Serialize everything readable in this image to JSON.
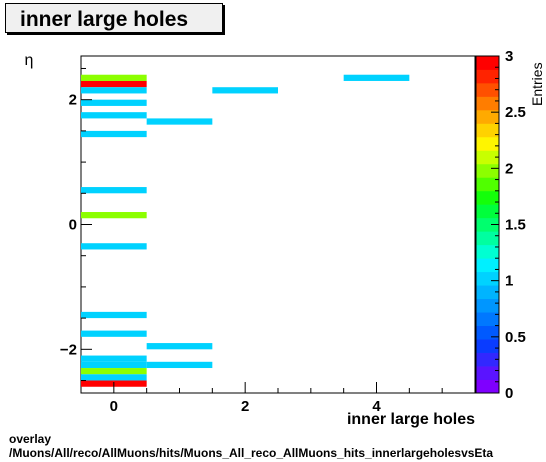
{
  "title": "inner large holes",
  "footer": {
    "line1": "overlay",
    "line2": "/Muons/All/reco/AllMuons/hits/Muons_All_reco_AllMuons_hits_innerlargeholesvsEta"
  },
  "chart_data": {
    "type": "heatmap",
    "title": "inner large holes",
    "xlabel": "inner large holes",
    "ylabel": "η",
    "zlabel": "Entries",
    "xlim": [
      -0.5,
      5.5
    ],
    "ylim": [
      -2.7,
      2.7
    ],
    "zlim": [
      0,
      3
    ],
    "x_ticks": [
      0,
      2,
      4
    ],
    "y_ticks": [
      -2,
      0,
      2
    ],
    "z_ticks": [
      "0",
      "0.5",
      "1",
      "1.5",
      "2",
      "2.5",
      "3"
    ],
    "bin_height": 0.1,
    "bins": [
      {
        "x": 0,
        "y": 2.35,
        "z": 2
      },
      {
        "x": 0,
        "y": 2.25,
        "z": 3
      },
      {
        "x": 0,
        "y": 2.15,
        "z": 1
      },
      {
        "x": 0,
        "y": 1.95,
        "z": 1
      },
      {
        "x": 0,
        "y": 1.75,
        "z": 1
      },
      {
        "x": 0,
        "y": 1.45,
        "z": 1
      },
      {
        "x": 0,
        "y": 0.55,
        "z": 1
      },
      {
        "x": 0,
        "y": 0.15,
        "z": 2
      },
      {
        "x": 0,
        "y": -0.35,
        "z": 1
      },
      {
        "x": 0,
        "y": -1.45,
        "z": 1
      },
      {
        "x": 0,
        "y": -1.75,
        "z": 1
      },
      {
        "x": 0,
        "y": -2.15,
        "z": 1
      },
      {
        "x": 0,
        "y": -2.25,
        "z": 1
      },
      {
        "x": 0,
        "y": -2.35,
        "z": 2
      },
      {
        "x": 0,
        "y": -2.45,
        "z": 1
      },
      {
        "x": 0,
        "y": -2.55,
        "z": 3
      },
      {
        "x": 1,
        "y": 1.65,
        "z": 1
      },
      {
        "x": 1,
        "y": -1.95,
        "z": 1
      },
      {
        "x": 1,
        "y": -2.25,
        "z": 1
      },
      {
        "x": 2,
        "y": 2.15,
        "z": 1
      },
      {
        "x": 4,
        "y": 2.35,
        "z": 1
      }
    ],
    "palette": [
      "#7f00ff",
      "#5a14ff",
      "#3228ff",
      "#0a3cff",
      "#005aff",
      "#0078ff",
      "#0096ff",
      "#00b4ff",
      "#00d2ff",
      "#00f0ff",
      "#00ffd2",
      "#00ffa0",
      "#00ff6e",
      "#00ff3c",
      "#14ff0a",
      "#50ff00",
      "#8cff00",
      "#c8ff00",
      "#fff500",
      "#ffd200",
      "#ffaa00",
      "#ff7d00",
      "#ff5000",
      "#ff2300",
      "#ff0000"
    ]
  }
}
